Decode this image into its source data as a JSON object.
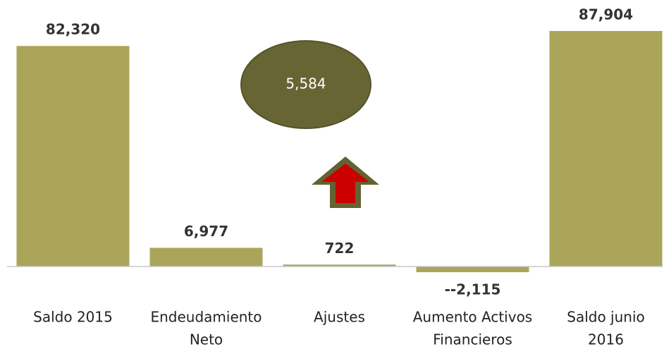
{
  "chart_data": {
    "type": "bar",
    "categories": [
      [
        "Saldo 2015"
      ],
      [
        "Endeudamiento",
        "Neto"
      ],
      [
        "Ajustes"
      ],
      [
        "Aumento Activos",
        "Financieros"
      ],
      [
        "Saldo junio",
        "2016"
      ]
    ],
    "values": [
      82320,
      6977,
      722,
      -2115,
      87904
    ],
    "value_labels": [
      "82,320",
      "6,977",
      "722",
      "--2,115",
      "87,904"
    ],
    "color": "#aba55a",
    "ylim": [
      -10000,
      90000
    ],
    "annotation": "5,584"
  }
}
